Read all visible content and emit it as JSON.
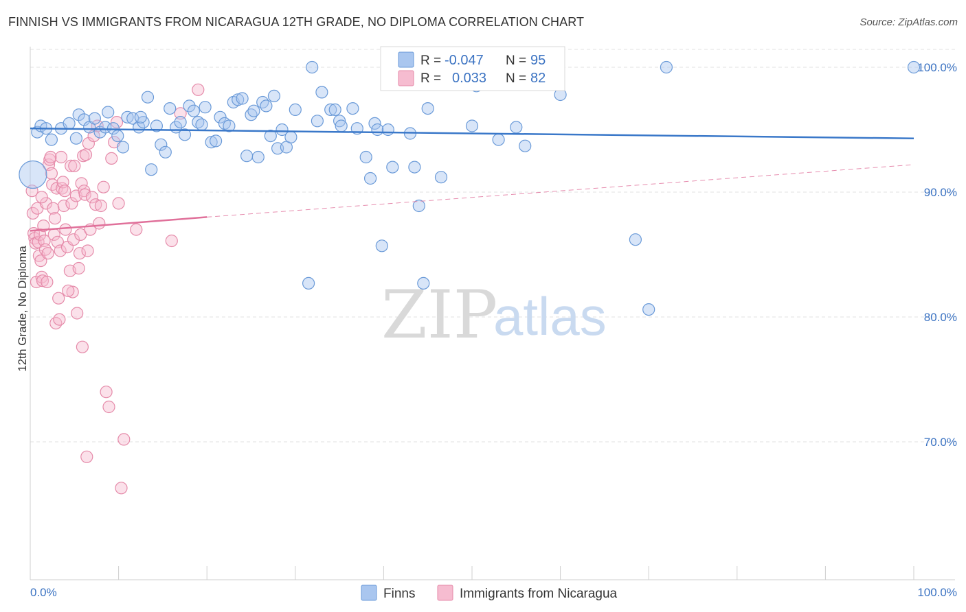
{
  "title": "FINNISH VS IMMIGRANTS FROM NICARAGUA 12TH GRADE, NO DIPLOMA CORRELATION CHART",
  "source": "Source: ZipAtlas.com",
  "watermark": {
    "zip": "ZIP",
    "atlas": "atlas"
  },
  "legend": {
    "r_label": "R =",
    "n_label": "N =",
    "rows": [
      {
        "r": "-0.047",
        "n": "95",
        "color": "#a9c6ef",
        "stroke": "#6a9ad8"
      },
      {
        "r": "0.033",
        "n": "82",
        "color": "#f6bcd0",
        "stroke": "#e58aa9"
      }
    ]
  },
  "bottom_legend": [
    {
      "label": "Finns",
      "color": "#a9c6ef",
      "stroke": "#6a9ad8"
    },
    {
      "label": "Immigrants from Nicaragua",
      "color": "#f6bcd0",
      "stroke": "#e58aa9"
    }
  ],
  "chart_data": {
    "type": "scatter",
    "ylabel": "12th Grade, No Diploma",
    "xlabel": "",
    "xlim": [
      0,
      100
    ],
    "ylim": [
      60,
      102
    ],
    "x_tick_labels": [
      "0.0%",
      "100.0%"
    ],
    "y_tick_labels": [
      "100.0%",
      "90.0%",
      "80.0%",
      "70.0%"
    ],
    "y_ticks": [
      100,
      90,
      80,
      70
    ],
    "grid": true,
    "colors": {
      "finns": "#3a78c9",
      "nicaragua": "#e0709a"
    },
    "series": [
      {
        "name": "Finns",
        "trend": {
          "x": [
            0,
            100
          ],
          "y": [
            95.1,
            94.3
          ],
          "style": "solid"
        },
        "points": [
          [
            0.3,
            91.4
          ],
          [
            0.8,
            94.8
          ],
          [
            1.2,
            95.3
          ],
          [
            1.8,
            95.1
          ],
          [
            2.4,
            94.2
          ],
          [
            3.5,
            95.1
          ],
          [
            4.4,
            95.5
          ],
          [
            5.2,
            94.3
          ],
          [
            5.5,
            96.2
          ],
          [
            6.1,
            95.8
          ],
          [
            6.7,
            95.2
          ],
          [
            7.3,
            95.9
          ],
          [
            7.9,
            94.8
          ],
          [
            8.5,
            95.2
          ],
          [
            8.8,
            96.4
          ],
          [
            9.4,
            95.1
          ],
          [
            9.9,
            94.5
          ],
          [
            10.5,
            93.6
          ],
          [
            11.0,
            96.0
          ],
          [
            11.6,
            95.9
          ],
          [
            12.3,
            95.2
          ],
          [
            12.8,
            95.6
          ],
          [
            13.3,
            97.6
          ],
          [
            13.7,
            91.8
          ],
          [
            14.3,
            95.3
          ],
          [
            14.8,
            93.8
          ],
          [
            15.3,
            93.2
          ],
          [
            15.8,
            96.7
          ],
          [
            16.5,
            95.2
          ],
          [
            17.0,
            95.6
          ],
          [
            17.5,
            94.6
          ],
          [
            18.0,
            96.9
          ],
          [
            18.5,
            96.5
          ],
          [
            19.0,
            95.6
          ],
          [
            19.4,
            95.4
          ],
          [
            19.8,
            96.8
          ],
          [
            20.5,
            94.0
          ],
          [
            21.0,
            94.1
          ],
          [
            21.5,
            96.0
          ],
          [
            22.0,
            95.5
          ],
          [
            22.5,
            95.3
          ],
          [
            23.0,
            97.2
          ],
          [
            23.5,
            97.4
          ],
          [
            24.0,
            97.5
          ],
          [
            24.5,
            92.9
          ],
          [
            25.0,
            96.2
          ],
          [
            25.3,
            96.5
          ],
          [
            25.8,
            92.8
          ],
          [
            26.3,
            97.2
          ],
          [
            26.7,
            96.9
          ],
          [
            27.2,
            94.5
          ],
          [
            27.6,
            97.7
          ],
          [
            28.0,
            93.5
          ],
          [
            28.5,
            95.0
          ],
          [
            29.0,
            93.6
          ],
          [
            29.5,
            94.4
          ],
          [
            30.0,
            96.6
          ],
          [
            31.5,
            82.7
          ],
          [
            31.9,
            100.0
          ],
          [
            32.5,
            95.7
          ],
          [
            33.0,
            98.0
          ],
          [
            34.0,
            96.6
          ],
          [
            34.5,
            96.6
          ],
          [
            35.0,
            95.7
          ],
          [
            35.2,
            95.3
          ],
          [
            36.5,
            96.7
          ],
          [
            37.0,
            95.1
          ],
          [
            38.0,
            92.8
          ],
          [
            38.5,
            91.1
          ],
          [
            39.0,
            95.5
          ],
          [
            39.3,
            95.0
          ],
          [
            39.8,
            85.7
          ],
          [
            40.5,
            95.0
          ],
          [
            41.0,
            92.0
          ],
          [
            42.0,
            98.7
          ],
          [
            43.0,
            94.7
          ],
          [
            43.5,
            92.0
          ],
          [
            44.0,
            88.9
          ],
          [
            44.5,
            82.7
          ],
          [
            45.0,
            96.7
          ],
          [
            46.5,
            91.2
          ],
          [
            50.0,
            95.3
          ],
          [
            50.5,
            98.5
          ],
          [
            53.0,
            94.2
          ],
          [
            56.5,
            100.0
          ],
          [
            57.5,
            99.6
          ],
          [
            59.0,
            100.0
          ],
          [
            56.0,
            93.7
          ],
          [
            60.0,
            97.8
          ],
          [
            68.5,
            86.2
          ],
          [
            70.0,
            80.6
          ],
          [
            72.0,
            100.0
          ],
          [
            100.0,
            100.0
          ],
          [
            55.0,
            95.2
          ],
          [
            12.5,
            96.0
          ]
        ]
      },
      {
        "name": "Immigrants from Nicaragua",
        "trend": {
          "x": [
            0,
            20,
            100
          ],
          "y": [
            86.9,
            88.0,
            92.2
          ],
          "style": "solid-then-dashed"
        },
        "points": [
          [
            0.2,
            90.1
          ],
          [
            0.3,
            88.3
          ],
          [
            0.4,
            86.7
          ],
          [
            0.5,
            86.3
          ],
          [
            0.6,
            85.9
          ],
          [
            0.7,
            82.8
          ],
          [
            0.8,
            88.7
          ],
          [
            0.9,
            86.0
          ],
          [
            1.0,
            84.9
          ],
          [
            1.1,
            86.6
          ],
          [
            1.2,
            84.5
          ],
          [
            1.3,
            83.2
          ],
          [
            1.4,
            82.9
          ],
          [
            1.5,
            87.3
          ],
          [
            1.6,
            86.1
          ],
          [
            1.7,
            85.4
          ],
          [
            1.8,
            89.1
          ],
          [
            1.9,
            82.8
          ],
          [
            2.0,
            85.1
          ],
          [
            2.1,
            92.2
          ],
          [
            2.2,
            92.6
          ],
          [
            2.3,
            92.8
          ],
          [
            2.4,
            91.5
          ],
          [
            2.5,
            90.6
          ],
          [
            2.6,
            88.7
          ],
          [
            2.7,
            86.6
          ],
          [
            2.8,
            87.9
          ],
          [
            2.9,
            79.5
          ],
          [
            3.0,
            90.3
          ],
          [
            3.1,
            86.0
          ],
          [
            3.2,
            81.5
          ],
          [
            3.3,
            79.8
          ],
          [
            3.4,
            85.3
          ],
          [
            3.5,
            92.8
          ],
          [
            3.6,
            90.3
          ],
          [
            3.7,
            90.8
          ],
          [
            3.8,
            88.9
          ],
          [
            3.9,
            90.1
          ],
          [
            4.0,
            87.0
          ],
          [
            4.2,
            85.6
          ],
          [
            4.5,
            83.7
          ],
          [
            4.6,
            92.1
          ],
          [
            4.7,
            89.1
          ],
          [
            4.8,
            82.0
          ],
          [
            4.9,
            86.2
          ],
          [
            5.0,
            92.1
          ],
          [
            5.2,
            89.7
          ],
          [
            5.3,
            80.3
          ],
          [
            5.5,
            83.9
          ],
          [
            5.6,
            85.1
          ],
          [
            5.7,
            86.6
          ],
          [
            5.8,
            90.7
          ],
          [
            5.9,
            77.6
          ],
          [
            6.0,
            92.9
          ],
          [
            6.1,
            90.1
          ],
          [
            6.2,
            89.8
          ],
          [
            6.3,
            93.0
          ],
          [
            6.5,
            85.3
          ],
          [
            6.6,
            93.9
          ],
          [
            6.8,
            87.0
          ],
          [
            7.0,
            89.6
          ],
          [
            7.2,
            94.5
          ],
          [
            7.4,
            89.0
          ],
          [
            7.6,
            95.3
          ],
          [
            7.8,
            87.5
          ],
          [
            8.0,
            88.9
          ],
          [
            8.3,
            90.4
          ],
          [
            8.6,
            74.0
          ],
          [
            8.9,
            72.8
          ],
          [
            9.2,
            92.7
          ],
          [
            9.5,
            94.0
          ],
          [
            10.0,
            89.1
          ],
          [
            10.3,
            66.3
          ],
          [
            10.6,
            70.2
          ],
          [
            12.0,
            87.0
          ],
          [
            16.0,
            86.1
          ],
          [
            17.0,
            96.3
          ],
          [
            19.0,
            98.2
          ],
          [
            4.3,
            82.1
          ],
          [
            6.4,
            68.8
          ],
          [
            1.3,
            89.6
          ],
          [
            9.8,
            95.6
          ]
        ]
      }
    ]
  }
}
